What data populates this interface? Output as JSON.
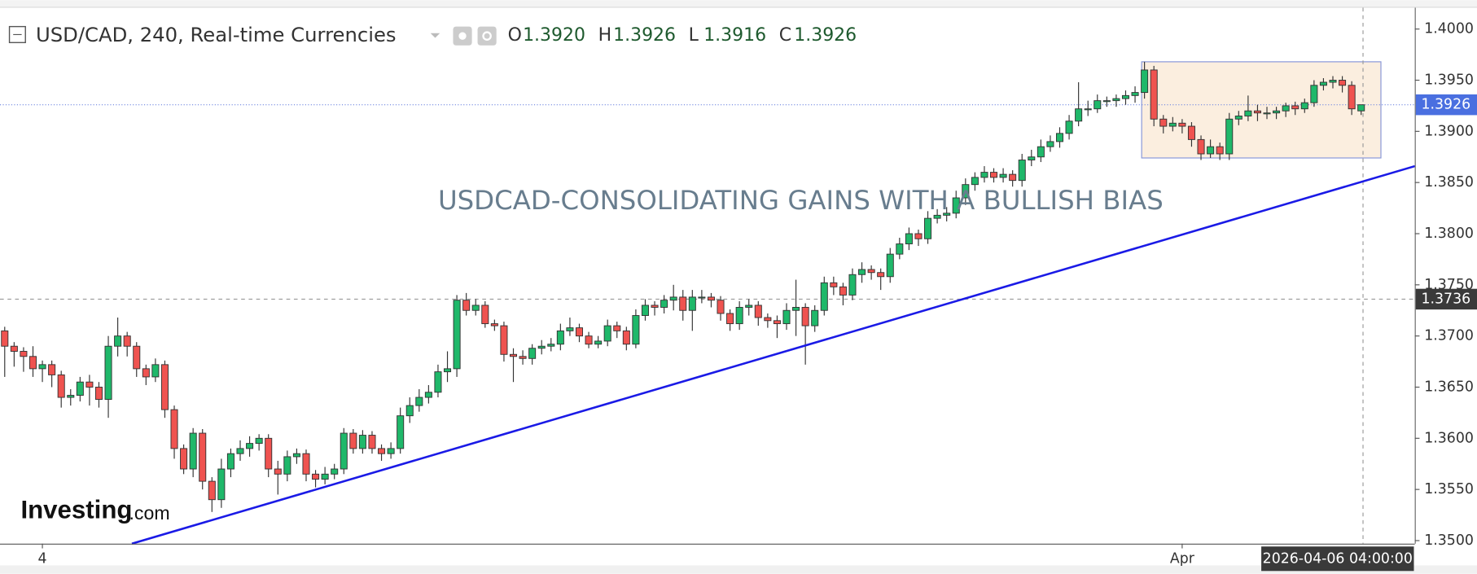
{
  "chart_data": {
    "type": "candlestick",
    "title": "USD/CAD, 240, Real-time Currencies",
    "ohlc_header": [
      {
        "key": "O",
        "value": "1.3920"
      },
      {
        "key": "H",
        "value": "1.3926"
      },
      {
        "key": "L",
        "value": "1.3916"
      },
      {
        "key": "C",
        "value": "1.3926"
      }
    ],
    "annotation": "USDCAD-CONSOLIDATING GAINS WITH A BULLISH BIAS",
    "logo": {
      "name": "Investing",
      "suffix": ".com"
    },
    "up_color": "#1fb86a",
    "down_color": "#ef5350",
    "ylim": [
      1.3497,
      1.4019
    ],
    "yticks": [
      {
        "value": 1.35,
        "label": "1.3500"
      },
      {
        "value": 1.355,
        "label": "1.3550"
      },
      {
        "value": 1.36,
        "label": "1.3600"
      },
      {
        "value": 1.365,
        "label": "1.3650"
      },
      {
        "value": 1.37,
        "label": "1.3700"
      },
      {
        "value": 1.375,
        "label": "1.3750"
      },
      {
        "value": 1.38,
        "label": "1.3800"
      },
      {
        "value": 1.385,
        "label": "1.3850"
      },
      {
        "value": 1.39,
        "label": "1.3900"
      },
      {
        "value": 1.395,
        "label": "1.3950"
      },
      {
        "value": 1.4,
        "label": "1.4000"
      }
    ],
    "xticks": [
      {
        "value": 4,
        "label": "4"
      },
      {
        "value": 125,
        "label": "Apr"
      }
    ],
    "price_line": 1.3926,
    "crosshair": {
      "price": 1.3736,
      "time": "2026-04-06 04:00:00"
    },
    "trendline": {
      "color": "#1a1ae6",
      "x": [
        13.5,
        149.7
      ],
      "y": [
        1.3497,
        1.3866
      ]
    },
    "range_box": {
      "x": [
        120.7,
        146.1
      ],
      "y": [
        1.3874,
        1.3968
      ]
    },
    "ohlc": [
      [
        1.3705,
        1.3709,
        1.366,
        1.369
      ],
      [
        1.369,
        1.3694,
        1.367,
        1.3685
      ],
      [
        1.3685,
        1.3689,
        1.3665,
        1.368
      ],
      [
        1.368,
        1.369,
        1.366,
        1.3668
      ],
      [
        1.3668,
        1.3676,
        1.3655,
        1.3672
      ],
      [
        1.3672,
        1.3676,
        1.365,
        1.3662
      ],
      [
        1.3662,
        1.3666,
        1.363,
        1.364
      ],
      [
        1.364,
        1.3648,
        1.3632,
        1.3642
      ],
      [
        1.3642,
        1.366,
        1.3636,
        1.3655
      ],
      [
        1.3655,
        1.3662,
        1.3632,
        1.365
      ],
      [
        1.365,
        1.3655,
        1.363,
        1.3638
      ],
      [
        1.3638,
        1.37,
        1.362,
        1.369
      ],
      [
        1.369,
        1.3718,
        1.368,
        1.37
      ],
      [
        1.37,
        1.3704,
        1.368,
        1.369
      ],
      [
        1.369,
        1.3694,
        1.366,
        1.3668
      ],
      [
        1.3668,
        1.3672,
        1.3652,
        1.366
      ],
      [
        1.366,
        1.3678,
        1.3655,
        1.3672
      ],
      [
        1.3672,
        1.3676,
        1.362,
        1.3628
      ],
      [
        1.3628,
        1.3632,
        1.358,
        1.359
      ],
      [
        1.359,
        1.3594,
        1.3565,
        1.357
      ],
      [
        1.357,
        1.361,
        1.3562,
        1.3605
      ],
      [
        1.3605,
        1.3609,
        1.355,
        1.3558
      ],
      [
        1.3558,
        1.3562,
        1.3528,
        1.354
      ],
      [
        1.354,
        1.358,
        1.3532,
        1.357
      ],
      [
        1.357,
        1.359,
        1.3562,
        1.3585
      ],
      [
        1.3585,
        1.3598,
        1.3578,
        1.359
      ],
      [
        1.359,
        1.3602,
        1.3582,
        1.3595
      ],
      [
        1.3595,
        1.3604,
        1.3588,
        1.36
      ],
      [
        1.36,
        1.3604,
        1.3562,
        1.357
      ],
      [
        1.357,
        1.3578,
        1.3545,
        1.3565
      ],
      [
        1.3565,
        1.3588,
        1.3558,
        1.3582
      ],
      [
        1.3582,
        1.359,
        1.3575,
        1.3585
      ],
      [
        1.3585,
        1.3589,
        1.3558,
        1.3565
      ],
      [
        1.3565,
        1.3569,
        1.3552,
        1.356
      ],
      [
        1.356,
        1.3572,
        1.3555,
        1.3565
      ],
      [
        1.3565,
        1.3575,
        1.356,
        1.357
      ],
      [
        1.357,
        1.361,
        1.3565,
        1.3605
      ],
      [
        1.3605,
        1.3609,
        1.3585,
        1.359
      ],
      [
        1.359,
        1.3608,
        1.3585,
        1.3603
      ],
      [
        1.3603,
        1.3607,
        1.3585,
        1.359
      ],
      [
        1.359,
        1.3594,
        1.3578,
        1.3585
      ],
      [
        1.3585,
        1.3596,
        1.358,
        1.359
      ],
      [
        1.359,
        1.363,
        1.3585,
        1.3622
      ],
      [
        1.3622,
        1.364,
        1.3615,
        1.3632
      ],
      [
        1.3632,
        1.3648,
        1.3626,
        1.364
      ],
      [
        1.364,
        1.3652,
        1.3634,
        1.3645
      ],
      [
        1.3645,
        1.3672,
        1.364,
        1.3665
      ],
      [
        1.3665,
        1.3685,
        1.3655,
        1.3668
      ],
      [
        1.3668,
        1.374,
        1.366,
        1.3735
      ],
      [
        1.3735,
        1.3742,
        1.372,
        1.3725
      ],
      [
        1.3725,
        1.3736,
        1.372,
        1.373
      ],
      [
        1.373,
        1.3734,
        1.3708,
        1.3712
      ],
      [
        1.3712,
        1.3716,
        1.3705,
        1.371
      ],
      [
        1.371,
        1.3714,
        1.3675,
        1.3682
      ],
      [
        1.3682,
        1.3688,
        1.3655,
        1.368
      ],
      [
        1.368,
        1.3686,
        1.3672,
        1.3678
      ],
      [
        1.3678,
        1.3692,
        1.3672,
        1.3688
      ],
      [
        1.3688,
        1.3696,
        1.3682,
        1.369
      ],
      [
        1.369,
        1.3698,
        1.3685,
        1.3692
      ],
      [
        1.3692,
        1.3712,
        1.3686,
        1.3705
      ],
      [
        1.3705,
        1.3718,
        1.37,
        1.3708
      ],
      [
        1.3708,
        1.3712,
        1.3694,
        1.37
      ],
      [
        1.37,
        1.3704,
        1.3688,
        1.3692
      ],
      [
        1.3692,
        1.37,
        1.3688,
        1.3695
      ],
      [
        1.3695,
        1.3716,
        1.369,
        1.371
      ],
      [
        1.371,
        1.3714,
        1.3698,
        1.3705
      ],
      [
        1.3705,
        1.3709,
        1.3686,
        1.3692
      ],
      [
        1.3692,
        1.3726,
        1.3688,
        1.372
      ],
      [
        1.372,
        1.3736,
        1.3715,
        1.373
      ],
      [
        1.373,
        1.3734,
        1.372,
        1.3728
      ],
      [
        1.3728,
        1.374,
        1.3722,
        1.3735
      ],
      [
        1.3735,
        1.375,
        1.3725,
        1.3738
      ],
      [
        1.3738,
        1.3745,
        1.3715,
        1.3725
      ],
      [
        1.3725,
        1.3745,
        1.3705,
        1.3738
      ],
      [
        1.3738,
        1.3745,
        1.3732,
        1.3738
      ],
      [
        1.3738,
        1.3742,
        1.3728,
        1.3735
      ],
      [
        1.3735,
        1.3739,
        1.3715,
        1.3722
      ],
      [
        1.3722,
        1.3726,
        1.3705,
        1.3712
      ],
      [
        1.3712,
        1.3734,
        1.3706,
        1.3728
      ],
      [
        1.3728,
        1.3736,
        1.372,
        1.373
      ],
      [
        1.373,
        1.3734,
        1.371,
        1.3718
      ],
      [
        1.3718,
        1.3722,
        1.3708,
        1.3715
      ],
      [
        1.3715,
        1.372,
        1.3698,
        1.3712
      ],
      [
        1.3712,
        1.3732,
        1.3706,
        1.3725
      ],
      [
        1.3725,
        1.3755,
        1.37,
        1.3728
      ],
      [
        1.3728,
        1.3732,
        1.3672,
        1.371
      ],
      [
        1.371,
        1.373,
        1.3704,
        1.3725
      ],
      [
        1.3725,
        1.3758,
        1.372,
        1.3752
      ],
      [
        1.3752,
        1.3758,
        1.374,
        1.3748
      ],
      [
        1.3748,
        1.3752,
        1.373,
        1.374
      ],
      [
        1.374,
        1.3766,
        1.3735,
        1.376
      ],
      [
        1.376,
        1.3772,
        1.3752,
        1.3765
      ],
      [
        1.3765,
        1.3769,
        1.3755,
        1.3762
      ],
      [
        1.3762,
        1.3766,
        1.3745,
        1.3758
      ],
      [
        1.3758,
        1.3786,
        1.3752,
        1.378
      ],
      [
        1.378,
        1.3796,
        1.3775,
        1.379
      ],
      [
        1.379,
        1.3806,
        1.3784,
        1.38
      ],
      [
        1.38,
        1.3804,
        1.3788,
        1.3795
      ],
      [
        1.3795,
        1.3822,
        1.379,
        1.3815
      ],
      [
        1.3815,
        1.3824,
        1.381,
        1.3818
      ],
      [
        1.3818,
        1.3826,
        1.3812,
        1.382
      ],
      [
        1.382,
        1.3842,
        1.3815,
        1.3835
      ],
      [
        1.3835,
        1.3854,
        1.3828,
        1.3848
      ],
      [
        1.3848,
        1.386,
        1.3842,
        1.3855
      ],
      [
        1.3855,
        1.3866,
        1.385,
        1.386
      ],
      [
        1.386,
        1.3864,
        1.385,
        1.3855
      ],
      [
        1.3855,
        1.3864,
        1.385,
        1.3858
      ],
      [
        1.3858,
        1.3862,
        1.3846,
        1.3852
      ],
      [
        1.3852,
        1.3878,
        1.3846,
        1.3872
      ],
      [
        1.3872,
        1.3882,
        1.3866,
        1.3875
      ],
      [
        1.3875,
        1.3892,
        1.387,
        1.3885
      ],
      [
        1.3885,
        1.3896,
        1.388,
        1.389
      ],
      [
        1.389,
        1.3904,
        1.3884,
        1.3898
      ],
      [
        1.3898,
        1.3916,
        1.3892,
        1.391
      ],
      [
        1.391,
        1.3948,
        1.3905,
        1.3922
      ],
      [
        1.3922,
        1.393,
        1.3915,
        1.3922
      ],
      [
        1.3922,
        1.3936,
        1.3918,
        1.393
      ],
      [
        1.393,
        1.3934,
        1.3924,
        1.393
      ],
      [
        1.393,
        1.3936,
        1.3924,
        1.3932
      ],
      [
        1.3932,
        1.394,
        1.3926,
        1.3935
      ],
      [
        1.3935,
        1.3944,
        1.3928,
        1.3938
      ],
      [
        1.3938,
        1.3968,
        1.3932,
        1.396
      ],
      [
        1.396,
        1.3964,
        1.3905,
        1.3912
      ],
      [
        1.3912,
        1.3916,
        1.3898,
        1.3905
      ],
      [
        1.3905,
        1.3914,
        1.39,
        1.3908
      ],
      [
        1.3908,
        1.3912,
        1.3898,
        1.3905
      ],
      [
        1.3905,
        1.3909,
        1.3885,
        1.3892
      ],
      [
        1.3892,
        1.3896,
        1.3872,
        1.3878
      ],
      [
        1.3878,
        1.3892,
        1.3874,
        1.3885
      ],
      [
        1.3885,
        1.3889,
        1.3872,
        1.3878
      ],
      [
        1.3878,
        1.3918,
        1.3872,
        1.3912
      ],
      [
        1.3912,
        1.392,
        1.3906,
        1.3915
      ],
      [
        1.3915,
        1.3935,
        1.391,
        1.392
      ],
      [
        1.392,
        1.3926,
        1.391,
        1.3918
      ],
      [
        1.3918,
        1.3924,
        1.3912,
        1.3918
      ],
      [
        1.3918,
        1.3924,
        1.3912,
        1.392
      ],
      [
        1.392,
        1.3928,
        1.3914,
        1.3925
      ],
      [
        1.3925,
        1.3929,
        1.3916,
        1.3922
      ],
      [
        1.3922,
        1.3932,
        1.3918,
        1.3928
      ],
      [
        1.3928,
        1.395,
        1.3924,
        1.3945
      ],
      [
        1.3945,
        1.3952,
        1.394,
        1.3948
      ],
      [
        1.3948,
        1.3954,
        1.3942,
        1.395
      ],
      [
        1.395,
        1.3954,
        1.3938,
        1.3945
      ],
      [
        1.3945,
        1.3949,
        1.3916,
        1.3922
      ],
      [
        1.392,
        1.3926,
        1.3916,
        1.3926
      ]
    ]
  }
}
